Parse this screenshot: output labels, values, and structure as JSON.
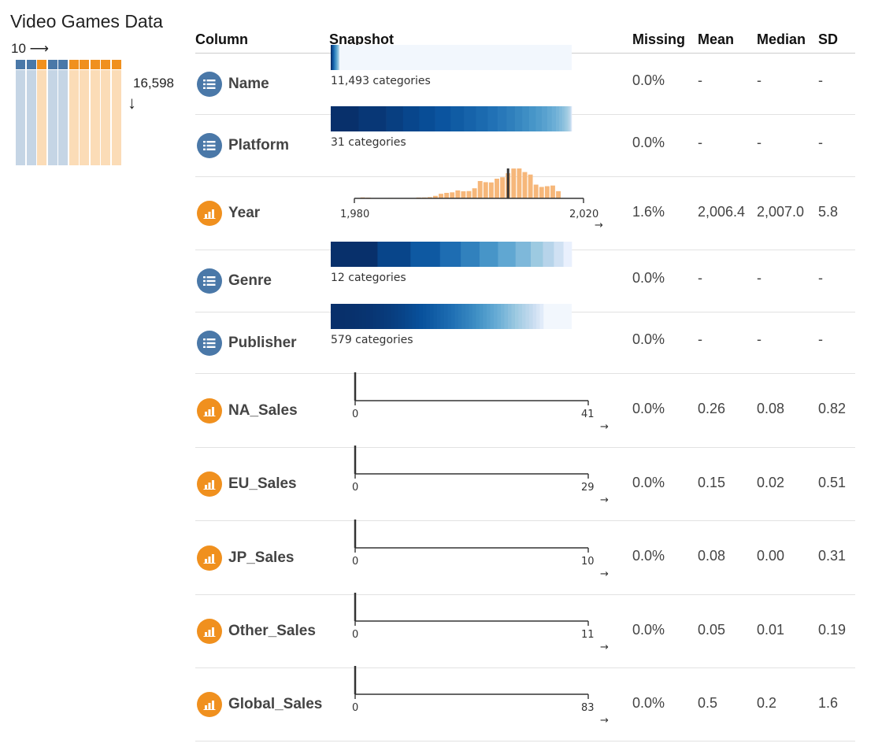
{
  "dataset": {
    "title": "Video Games Data",
    "columns_label": "10 ⟶",
    "rows_label": "16,598",
    "down_arrow": "↓"
  },
  "overview_columns": [
    "categorical",
    "categorical",
    "numeric",
    "categorical",
    "categorical",
    "numeric",
    "numeric",
    "numeric",
    "numeric",
    "numeric"
  ],
  "colors": {
    "categorical": "#4a78a8",
    "numeric": "#f0901e",
    "categorical_light": "#c5d5e5",
    "numeric_light": "#fbdcb7",
    "histogram": "#f6b77a"
  },
  "headers": {
    "column": "Column",
    "snapshot": "Snapshot",
    "missing": "Missing",
    "mean": "Mean",
    "median": "Median",
    "sd": "SD"
  },
  "rows": [
    {
      "name": "Name",
      "type": "categorical",
      "icon": "list-icon",
      "missing": "0.0%",
      "mean": "-",
      "median": "-",
      "sd": "-",
      "snapshot": {
        "kind": "categorical",
        "label": "11,493 categories"
      }
    },
    {
      "name": "Platform",
      "type": "categorical",
      "icon": "list-icon",
      "missing": "0.0%",
      "mean": "-",
      "median": "-",
      "sd": "-",
      "snapshot": {
        "kind": "categorical",
        "label": "31 categories"
      }
    },
    {
      "name": "Year",
      "type": "numeric",
      "icon": "bar-chart-icon",
      "missing": "1.6%",
      "mean": "2,006.4",
      "median": "2,007.0",
      "sd": "5.8",
      "snapshot": {
        "kind": "histogram",
        "min_label": "1,980",
        "max_label": "2,020",
        "arrow": "→"
      }
    },
    {
      "name": "Genre",
      "type": "categorical",
      "icon": "list-icon",
      "missing": "0.0%",
      "mean": "-",
      "median": "-",
      "sd": "-",
      "snapshot": {
        "kind": "categorical",
        "label": "12 categories"
      }
    },
    {
      "name": "Publisher",
      "type": "categorical",
      "icon": "list-icon",
      "missing": "0.0%",
      "mean": "-",
      "median": "-",
      "sd": "-",
      "snapshot": {
        "kind": "categorical",
        "label": "579 categories"
      }
    },
    {
      "name": "NA_Sales",
      "type": "numeric",
      "icon": "bar-chart-icon",
      "missing": "0.0%",
      "mean": "0.26",
      "median": "0.08",
      "sd": "0.82",
      "snapshot": {
        "kind": "skewed",
        "min_label": "0",
        "max_label": "41",
        "arrow": "→"
      }
    },
    {
      "name": "EU_Sales",
      "type": "numeric",
      "icon": "bar-chart-icon",
      "missing": "0.0%",
      "mean": "0.15",
      "median": "0.02",
      "sd": "0.51",
      "snapshot": {
        "kind": "skewed",
        "min_label": "0",
        "max_label": "29",
        "arrow": "→"
      }
    },
    {
      "name": "JP_Sales",
      "type": "numeric",
      "icon": "bar-chart-icon",
      "missing": "0.0%",
      "mean": "0.08",
      "median": "0.00",
      "sd": "0.31",
      "snapshot": {
        "kind": "skewed",
        "min_label": "0",
        "max_label": "10",
        "arrow": "→"
      }
    },
    {
      "name": "Other_Sales",
      "type": "numeric",
      "icon": "bar-chart-icon",
      "missing": "0.0%",
      "mean": "0.05",
      "median": "0.01",
      "sd": "0.19",
      "snapshot": {
        "kind": "skewed",
        "min_label": "0",
        "max_label": "11",
        "arrow": "→"
      }
    },
    {
      "name": "Global_Sales",
      "type": "numeric",
      "icon": "bar-chart-icon",
      "missing": "0.0%",
      "mean": "0.5",
      "median": "0.2",
      "sd": "1.6",
      "snapshot": {
        "kind": "skewed",
        "min_label": "0",
        "max_label": "83",
        "arrow": "→"
      }
    }
  ],
  "chart_data": [
    {
      "type": "bar",
      "series_of": "Year",
      "x": [
        1980,
        1981,
        1982,
        1983,
        1984,
        1985,
        1986,
        1987,
        1988,
        1989,
        1990,
        1991,
        1992,
        1993,
        1994,
        1995,
        1996,
        1997,
        1998,
        1999,
        2000,
        2001,
        2002,
        2003,
        2004,
        2005,
        2006,
        2007,
        2008,
        2009,
        2010,
        2011,
        2012,
        2013,
        2014,
        2015,
        2016,
        2017,
        2018,
        2019,
        2020
      ],
      "values": [
        9,
        46,
        36,
        17,
        14,
        14,
        21,
        16,
        15,
        17,
        16,
        41,
        43,
        60,
        121,
        219,
        263,
        289,
        379,
        338,
        349,
        482,
        829,
        775,
        763,
        941,
        1008,
        1202,
        1428,
        1431,
        1259,
        1139,
        657,
        546,
        582,
        614,
        344,
        3,
        1,
        0,
        1
      ],
      "xlim": [
        1980,
        2020
      ],
      "median_marker": 2007
    },
    {
      "type": "categorical-strip",
      "series_of": "Platform",
      "category_count": 31,
      "shares": [
        0.132,
        0.131,
        0.079,
        0.077,
        0.075,
        0.073,
        0.065,
        0.056,
        0.055,
        0.047,
        0.042,
        0.039,
        0.035,
        0.033,
        0.031,
        0.029,
        0.025,
        0.022,
        0.019,
        0.016,
        0.014,
        0.011,
        0.009,
        0.007,
        0.005,
        0.004,
        0.003,
        0.002,
        0.002,
        0.001,
        0.001
      ]
    },
    {
      "type": "categorical-strip",
      "series_of": "Genre",
      "category_count": 12,
      "shares": [
        0.2,
        0.141,
        0.126,
        0.089,
        0.08,
        0.079,
        0.075,
        0.065,
        0.052,
        0.047,
        0.041,
        0.035
      ]
    },
    {
      "type": "categorical-strip",
      "series_of": "Publisher",
      "category_count": 579,
      "shares_note": "long-tail distribution"
    }
  ]
}
